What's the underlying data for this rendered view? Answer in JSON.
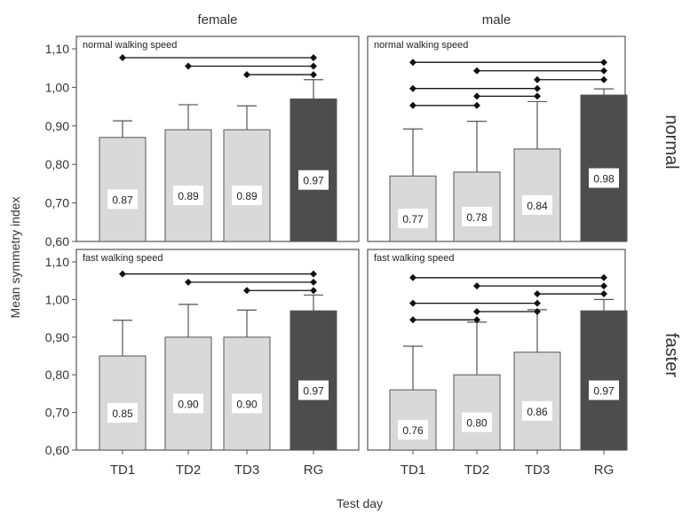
{
  "colors": {
    "td_bar": "#d9d9d9",
    "rg_bar": "#4d4d4d",
    "bar_edge": "#555555",
    "frame": "#555555",
    "bracket": "#111111",
    "label_box": "#ffffff"
  },
  "figure": {
    "column_titles": [
      "female",
      "male"
    ],
    "row_titles": [
      "normal",
      "faster"
    ],
    "xlabel": "Test day",
    "ylabel": "Mean symmetry index",
    "y_ticks": [
      "0,60",
      "0,70",
      "0,80",
      "0,90",
      "1,00",
      "1,10"
    ]
  },
  "chart_data": [
    {
      "type": "bar",
      "panel_label": "normal walking speed",
      "column": "female",
      "row": "normal",
      "categories": [
        "TD1",
        "TD2",
        "TD3",
        "RG"
      ],
      "values": [
        0.87,
        0.89,
        0.89,
        0.97
      ],
      "value_labels": [
        "0.87",
        "0.89",
        "0.89",
        "0.97"
      ],
      "error_upper": [
        0.913,
        0.955,
        0.952,
        1.02
      ],
      "ylim": [
        0.6,
        1.1
      ],
      "significance": [
        {
          "from": 0,
          "to": 3,
          "y": 1.077
        },
        {
          "from": 1,
          "to": 3,
          "y": 1.055
        },
        {
          "from": 2,
          "to": 3,
          "y": 1.033
        }
      ]
    },
    {
      "type": "bar",
      "panel_label": "normal walking speed",
      "column": "male",
      "row": "normal",
      "categories": [
        "TD1",
        "TD2",
        "TD3",
        "RG"
      ],
      "values": [
        0.77,
        0.78,
        0.84,
        0.98
      ],
      "value_labels": [
        "0.77",
        "0.78",
        "0.84",
        "0.98"
      ],
      "error_upper": [
        0.892,
        0.912,
        0.963,
        0.996
      ],
      "ylim": [
        0.6,
        1.1
      ],
      "significance": [
        {
          "from": 0,
          "to": 3,
          "y": 1.065
        },
        {
          "from": 1,
          "to": 3,
          "y": 1.043
        },
        {
          "from": 2,
          "to": 3,
          "y": 1.02
        },
        {
          "from": 0,
          "to": 2,
          "y": 0.997
        },
        {
          "from": 1,
          "to": 2,
          "y": 0.977
        },
        {
          "from": 0,
          "to": 1,
          "y": 0.953
        }
      ]
    },
    {
      "type": "bar",
      "panel_label": "fast walking speed",
      "column": "female",
      "row": "faster",
      "categories": [
        "TD1",
        "TD2",
        "TD3",
        "RG"
      ],
      "values": [
        0.85,
        0.9,
        0.9,
        0.97
      ],
      "value_labels": [
        "0.85",
        "0.90",
        "0.90",
        "0.97"
      ],
      "error_upper": [
        0.945,
        0.987,
        0.972,
        1.012
      ],
      "ylim": [
        0.6,
        1.1
      ],
      "significance": [
        {
          "from": 0,
          "to": 3,
          "y": 1.068
        },
        {
          "from": 1,
          "to": 3,
          "y": 1.046
        },
        {
          "from": 2,
          "to": 3,
          "y": 1.024
        }
      ]
    },
    {
      "type": "bar",
      "panel_label": "fast walking speed",
      "column": "male",
      "row": "faster",
      "categories": [
        "TD1",
        "TD2",
        "TD3",
        "RG"
      ],
      "values": [
        0.76,
        0.8,
        0.86,
        0.97
      ],
      "value_labels": [
        "0.76",
        "0.80",
        "0.86",
        "0.97"
      ],
      "error_upper": [
        0.876,
        0.94,
        0.973,
        1.0
      ],
      "ylim": [
        0.6,
        1.1
      ],
      "significance": [
        {
          "from": 0,
          "to": 3,
          "y": 1.058
        },
        {
          "from": 1,
          "to": 3,
          "y": 1.036
        },
        {
          "from": 2,
          "to": 3,
          "y": 1.015
        },
        {
          "from": 0,
          "to": 2,
          "y": 0.99
        },
        {
          "from": 1,
          "to": 2,
          "y": 0.968
        },
        {
          "from": 0,
          "to": 1,
          "y": 0.946
        }
      ]
    }
  ]
}
